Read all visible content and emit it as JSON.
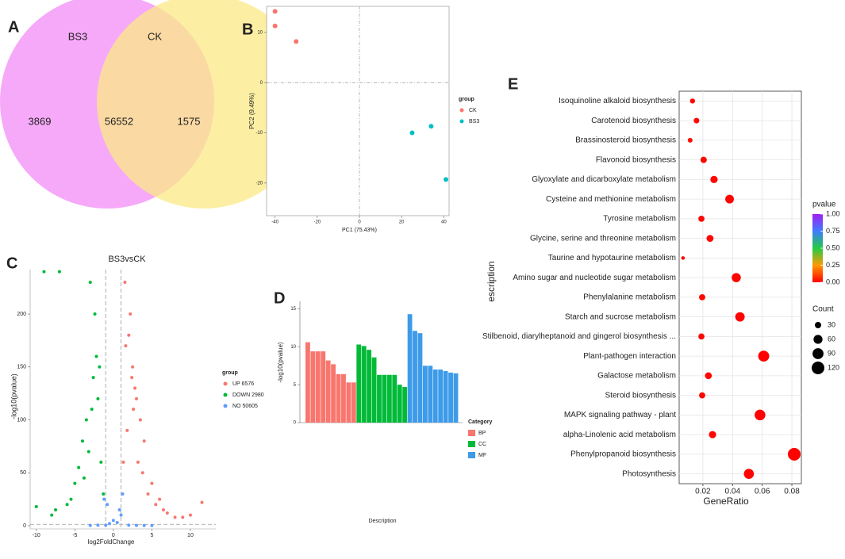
{
  "chart_data": [
    {
      "label": "A",
      "type": "venn",
      "sets": [
        "BS3",
        "CK"
      ],
      "values": [
        3869,
        56552,
        1575
      ],
      "colors": [
        "#f59af8",
        "#fbe985"
      ]
    },
    {
      "label": "B",
      "type": "scatter",
      "xlabel": "PC1 (75.43%)",
      "ylabel": "PC2 (9.49%)",
      "xlim": [
        -44,
        42.5
      ],
      "ylim": [
        -26.5,
        15.2
      ],
      "xticks": [
        -40,
        -20,
        0,
        20,
        40
      ],
      "yticks": [
        -20,
        -10,
        0,
        10
      ],
      "zero_lines": true,
      "legend_title": "group",
      "series": [
        {
          "name": "CK",
          "color": "#f8766d",
          "x": [
            -40,
            -40,
            -30
          ],
          "values": [
            14.2,
            11.3,
            8.2
          ]
        },
        {
          "name": "BS3",
          "color": "#00bfc4",
          "x": [
            25,
            34,
            41
          ],
          "values": [
            -10,
            -8.7,
            -19.3
          ]
        }
      ]
    },
    {
      "label": "C",
      "type": "scatter",
      "title": "BS3vsCK",
      "xlabel": "log2FoldChange",
      "ylabel": "-log10(pvalue)",
      "xlim": [
        -10.8,
        13.3
      ],
      "ylim": [
        -3,
        242
      ],
      "xticks": [
        -10,
        -5,
        0,
        5,
        10
      ],
      "yticks": [
        0,
        50,
        100,
        150,
        200
      ],
      "thresholds_x": [
        -1,
        1
      ],
      "threshold_y": 1.3,
      "legend_title": "group",
      "series": [
        {
          "name": "UP 6576",
          "color": "#f8766d",
          "x": [
            1.5,
            2,
            2.5,
            3,
            3.5,
            4,
            5,
            6,
            7,
            8,
            9,
            10,
            11.5,
            2.2,
            3.2,
            1.8,
            2.8,
            4.5,
            1.3,
            2.6,
            3.8,
            5.5,
            1.6,
            2.4,
            6.5
          ],
          "values": [
            230,
            180,
            150,
            120,
            100,
            80,
            40,
            25,
            12,
            8,
            8,
            10,
            22,
            200,
            60,
            90,
            130,
            30,
            60,
            110,
            50,
            20,
            170,
            140,
            15
          ]
        },
        {
          "name": "DOWN 2980",
          "color": "#00ba38",
          "x": [
            -9,
            -7,
            -3,
            -2.2,
            -2.6,
            -3.5,
            -4,
            -5,
            -6,
            -8,
            -10,
            -2,
            -1.6,
            -2.8,
            -3.2,
            -1.3,
            -4.5,
            -2.4,
            -5.5,
            -3.8,
            -1.8,
            -7.5
          ],
          "values": [
            240,
            240,
            230,
            160,
            140,
            100,
            80,
            40,
            20,
            10,
            18,
            120,
            60,
            110,
            70,
            30,
            55,
            200,
            25,
            45,
            150,
            15
          ]
        },
        {
          "name": "NO 50605",
          "color": "#619cff",
          "x": [
            -1,
            -0.5,
            0,
            0.5,
            1,
            -2,
            -3,
            2,
            3,
            4,
            5,
            -0.8,
            0.8,
            1.2,
            -1.2
          ],
          "values": [
            0.5,
            2,
            5,
            3,
            10,
            0.5,
            0.3,
            0.5,
            0.3,
            0.2,
            0.2,
            20,
            15,
            30,
            25
          ]
        }
      ]
    },
    {
      "label": "D",
      "type": "bar",
      "xlabel": "Description",
      "ylabel": "-log10(pvalue)",
      "ylim": [
        0,
        16
      ],
      "yticks": [
        0,
        5,
        10,
        15
      ],
      "legend_title": "Category",
      "series": [
        {
          "name": "BP",
          "color": "#f8766d",
          "values": [
            10.6,
            9.4,
            9.4,
            9.4,
            8.2,
            7.7,
            6.4,
            6.4,
            5.3,
            5.3
          ]
        },
        {
          "name": "CC",
          "color": "#00ba38",
          "values": [
            10.3,
            10.1,
            9.6,
            8.6,
            6.3,
            6.3,
            6.3,
            6.3,
            5.0,
            4.7
          ]
        },
        {
          "name": "MF",
          "color": "#3d9be9",
          "values": [
            14.3,
            12.1,
            11.8,
            7.5,
            7.5,
            7.0,
            7.0,
            6.8,
            6.6,
            6.5
          ]
        }
      ]
    },
    {
      "label": "E",
      "type": "dot",
      "xlabel": "GeneRatio",
      "ylabel": "escription",
      "categories": [
        "Isoquinoline alkaloid biosynthesis",
        "Carotenoid biosynthesis",
        "Brassinosteroid biosynthesis",
        "Flavonoid biosynthesis",
        "Glyoxylate and dicarboxylate metabolism",
        "Cysteine and methionine metabolism",
        "Tyrosine metabolism",
        "Glycine, serine and threonine metabolism",
        "Taurine and hypotaurine metabolism",
        "Amino sugar and nucleotide sugar metabolism",
        "Phenylalanine metabolism",
        "Starch and sucrose metabolism",
        "Stilbenoid, diarylheptanoid and gingerol biosynthesis ...",
        "Plant-pathogen interaction",
        "Galactose metabolism",
        "Steroid biosynthesis",
        "MAPK signaling pathway - plant",
        "alpha-Linolenic acid metabolism",
        "Phenylpropanoid biosynthesis",
        "Photosynthesis"
      ],
      "values": [
        0.013,
        0.0157,
        0.0114,
        0.0205,
        0.0275,
        0.038,
        0.019,
        0.0248,
        0.0066,
        0.0425,
        0.0195,
        0.045,
        0.019,
        0.061,
        0.0237,
        0.0195,
        0.0585,
        0.0265,
        0.0816,
        0.051
      ],
      "sizes": [
        19,
        23,
        17,
        30,
        40,
        56,
        28,
        36,
        10,
        62,
        29,
        66,
        28,
        90,
        35,
        29,
        86,
        39,
        120,
        75
      ],
      "pvalues": [
        0.01,
        0.01,
        0.02,
        0.01,
        0.01,
        0.005,
        0.01,
        0.01,
        0.02,
        0.005,
        0.01,
        0.005,
        0.01,
        0.001,
        0.01,
        0.01,
        0.001,
        0.01,
        0.001,
        0.005
      ],
      "xlim": [
        0.004,
        0.0864
      ],
      "xticks": [
        0.02,
        0.04,
        0.06,
        0.08
      ],
      "grid": true,
      "color_title": "pvalue",
      "clim": [
        0,
        1
      ],
      "cticks": [
        {
          "value": 1,
          "label": "1.00"
        },
        {
          "value": 0.75,
          "label": "0.75"
        },
        {
          "value": 0.5,
          "label": "0.50"
        },
        {
          "value": 0.25,
          "label": "0.25"
        },
        {
          "value": 0,
          "label": "0.00"
        }
      ],
      "size_title": "Count",
      "size_ticks": [
        30,
        60,
        90,
        120
      ]
    }
  ]
}
